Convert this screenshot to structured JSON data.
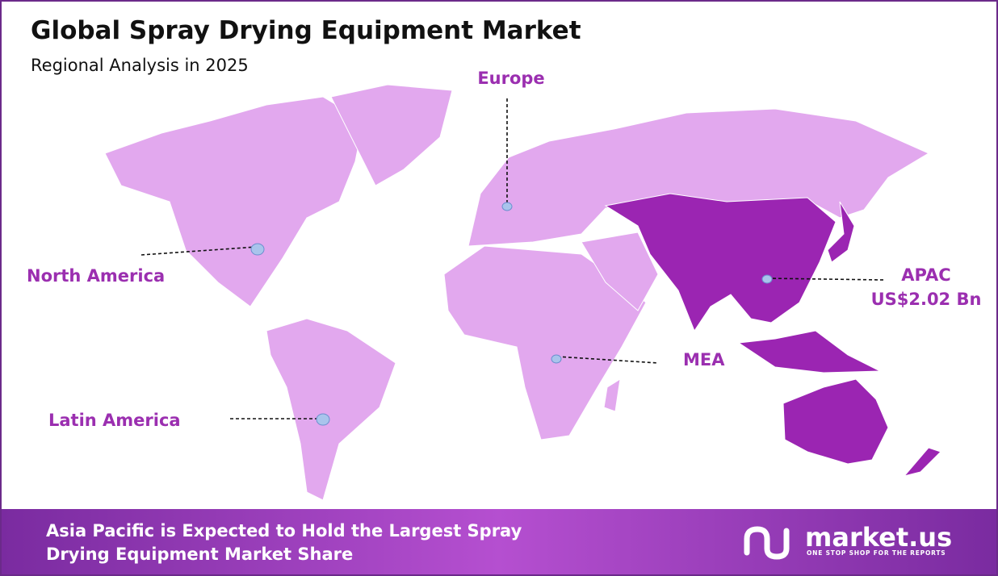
{
  "header": {
    "title": "Global Spray Drying Equipment Market",
    "subtitle": "Regional Analysis in 2025"
  },
  "regions": [
    {
      "label": "Europe"
    },
    {
      "label": "North America"
    },
    {
      "label": "APAC",
      "value": "US$2.02 Bn"
    },
    {
      "label": "MEA"
    },
    {
      "label": "Latin America"
    }
  ],
  "footer": {
    "lines": [
      "Asia Pacific is Expected to Hold the Largest Spray",
      "Drying Equipment Market Share"
    ],
    "logo": "market.us",
    "tagline": "ONE STOP SHOP FOR THE REPORTS"
  }
}
